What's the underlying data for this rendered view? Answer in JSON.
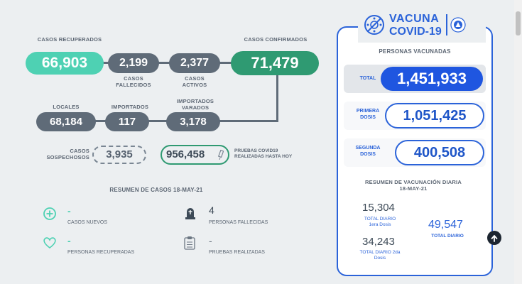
{
  "cases": {
    "recovered": {
      "label": "CASOS RECUPERADOS",
      "value": "66,903"
    },
    "deceased": {
      "label": "CASOS FALLECIDOS",
      "value": "2,199"
    },
    "active": {
      "label": "CASOS ACTIVOS",
      "value": "2,377"
    },
    "confirmed": {
      "label": "CASOS CONFIRMADOS",
      "value": "71,479"
    },
    "local": {
      "label": "LOCALES",
      "value": "68,184"
    },
    "imported": {
      "label": "IMPORTADOS",
      "value": "117"
    },
    "imported_stranded": {
      "label": "IMPORTADOS VARADOS",
      "value": "3,178"
    },
    "suspected": {
      "label": "CASOS SOSPECHOSOS",
      "value": "3,935"
    },
    "tests": {
      "label": "PRUEBAS COVID19 REALIZADAS HASTA HOY",
      "value": "956,458"
    }
  },
  "summary": {
    "title": "RESUMEN DE CASOS 18-MAY-21",
    "items": [
      {
        "icon": "plus-circle-icon",
        "value": "-",
        "label": "CASOS NUEVOS"
      },
      {
        "icon": "tombstone-icon",
        "value": "4",
        "label": "PERSONAS FALLECIDAS"
      },
      {
        "icon": "heart-icon",
        "value": "-",
        "label": "PERSONAS RECUPERADAS"
      },
      {
        "icon": "clipboard-icon",
        "value": "-",
        "label": "PRUEBAS REALIZADAS"
      }
    ]
  },
  "vaccine": {
    "logo_top": "VACUNA",
    "logo_bottom": "COVID-19",
    "vaccinated_title": "PERSONAS VACUNADAS",
    "total_label": "TOTAL",
    "total_value": "1,451,933",
    "first_label": "PRIMERA DOSIS",
    "first_value": "1,051,425",
    "second_label": "SEGUNDA DOSIS",
    "second_value": "400,508",
    "summary_title": "RESUMEN DE VACUNACIÓN DIARIA 18-MAY-21",
    "daily_first_value": "15,304",
    "daily_first_label": "TOTAL DIARIO 1era Dosis",
    "daily_second_value": "34,243",
    "daily_second_label": "TOTAL DIARIO 2da Dosis",
    "daily_total_value": "49,547",
    "daily_total_label": "TOTAL DIARIO"
  },
  "colors": {
    "recovered": "#4ed1b3",
    "confirmed": "#2f9a72",
    "accent_blue": "#2b63d9",
    "gray_pill": "#5f6b78"
  }
}
